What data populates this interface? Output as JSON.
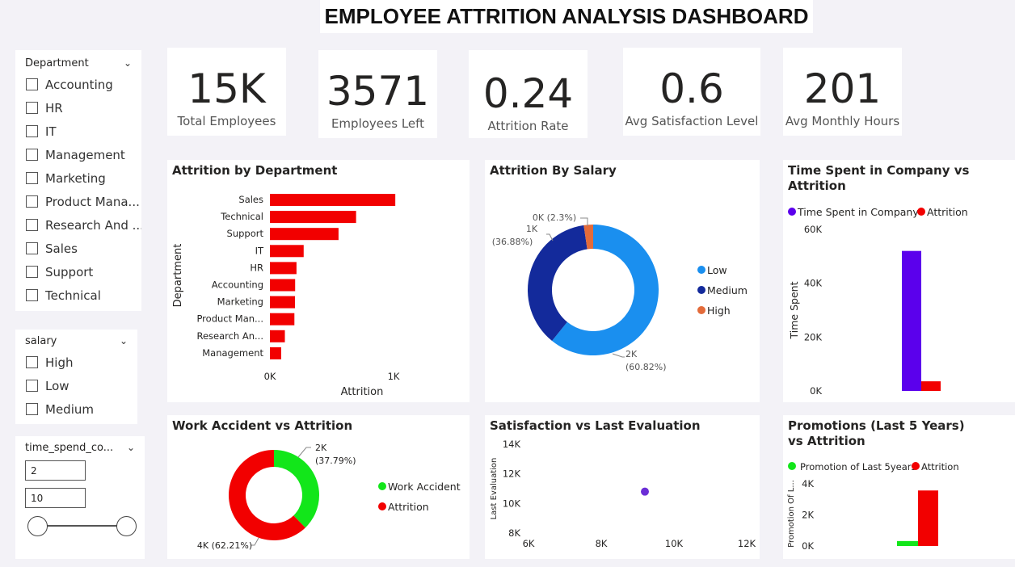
{
  "title": "EMPLOYEE ATTRITION ANALYSIS DASHBOARD",
  "slicers": {
    "department": {
      "label": "Department",
      "items": [
        "Accounting",
        "HR",
        "IT",
        "Management",
        "Marketing",
        "Product Mana...",
        "Research And ...",
        "Sales",
        "Support",
        "Technical"
      ]
    },
    "salary": {
      "label": "salary",
      "items": [
        "High",
        "Low",
        "Medium"
      ]
    },
    "time_spend": {
      "label": "time_spend_co...",
      "min": "2",
      "max": "10"
    }
  },
  "kpis": [
    {
      "value": "15K",
      "label": "Total Employees"
    },
    {
      "value": "3571",
      "label": "Employees Left"
    },
    {
      "value": "0.24",
      "label": "Attrition Rate"
    },
    {
      "value": "0.6",
      "label": "Avg Satisfaction Level"
    },
    {
      "value": "201",
      "label": "Avg Monthly Hours"
    }
  ],
  "visuals": {
    "attrition_by_department": "Attrition by Department",
    "attrition_by_salary": "Attrition By Salary",
    "time_spent": "Time Spent in Company vs Attrition",
    "work_accident": "Work Accident vs Attrition",
    "satisfaction": "Satisfaction vs Last Evaluation",
    "promotions": "Promotions (Last 5 Years) vs Attrition"
  },
  "colors": {
    "red": "#f20000",
    "low": "#1a8fef",
    "medium": "#132a9b",
    "high": "#e36b3a",
    "purple": "#5b00ec",
    "green": "#12e61a",
    "dot": "#6b2ed6"
  },
  "chart_data": [
    {
      "type": "bar",
      "orientation": "horizontal",
      "title": "Attrition by Department",
      "xlabel": "Attrition",
      "ylabel": "Department",
      "categories": [
        "Sales",
        "Technical",
        "Support",
        "IT",
        "HR",
        "Accounting",
        "Marketing",
        "Product Man...",
        "Research An...",
        "Management"
      ],
      "values": [
        1014,
        697,
        555,
        273,
        215,
        204,
        203,
        198,
        121,
        91
      ],
      "xticks": [
        "0K",
        "1K"
      ],
      "xlim": [
        0,
        1000
      ]
    },
    {
      "type": "pie",
      "donut": true,
      "title": "Attrition By Salary",
      "labels": [
        "Low",
        "Medium",
        "High"
      ],
      "values": [
        60.82,
        36.88,
        2.3
      ],
      "data_labels": [
        "2K\n(60.82%)",
        "1K\n(36.88%)",
        "0K (2.3%)"
      ],
      "legend": "right"
    },
    {
      "type": "bar",
      "title": "Time Spent in Company vs Attrition",
      "ylabel": "Time Spent",
      "series": [
        {
          "name": "Time Spent in Company",
          "values": [
            52000
          ]
        },
        {
          "name": "Attrition",
          "values": [
            3571
          ]
        }
      ],
      "yticks": [
        "0K",
        "20K",
        "40K",
        "60K"
      ],
      "ylim": [
        0,
        60000
      ],
      "legend": "top"
    },
    {
      "type": "pie",
      "donut": true,
      "title": "Work Accident vs Attrition",
      "labels": [
        "Work Accident",
        "Attrition"
      ],
      "values": [
        37.79,
        62.21
      ],
      "data_labels": [
        "2K\n(37.79%)",
        "4K (62.21%)"
      ],
      "legend": "right"
    },
    {
      "type": "scatter",
      "title": "Satisfaction vs Last Evaluation",
      "ylabel": "Last Evaluation",
      "x": [
        9200
      ],
      "y": [
        10800
      ],
      "xticks": [
        "6K",
        "8K",
        "10K",
        "12K"
      ],
      "yticks": [
        "8K",
        "10K",
        "12K",
        "14K"
      ],
      "xlim": [
        6000,
        12000
      ],
      "ylim": [
        8000,
        14000
      ]
    },
    {
      "type": "bar",
      "title": "Promotions (Last 5 Years) vs Attrition",
      "ylabel": "Promotion Of L...",
      "series": [
        {
          "name": "Promotion of Last 5years",
          "values": [
            319
          ]
        },
        {
          "name": "Attrition",
          "values": [
            3571
          ]
        }
      ],
      "yticks": [
        "0K",
        "2K",
        "4K"
      ],
      "ylim": [
        0,
        4000
      ],
      "legend": "top"
    }
  ]
}
